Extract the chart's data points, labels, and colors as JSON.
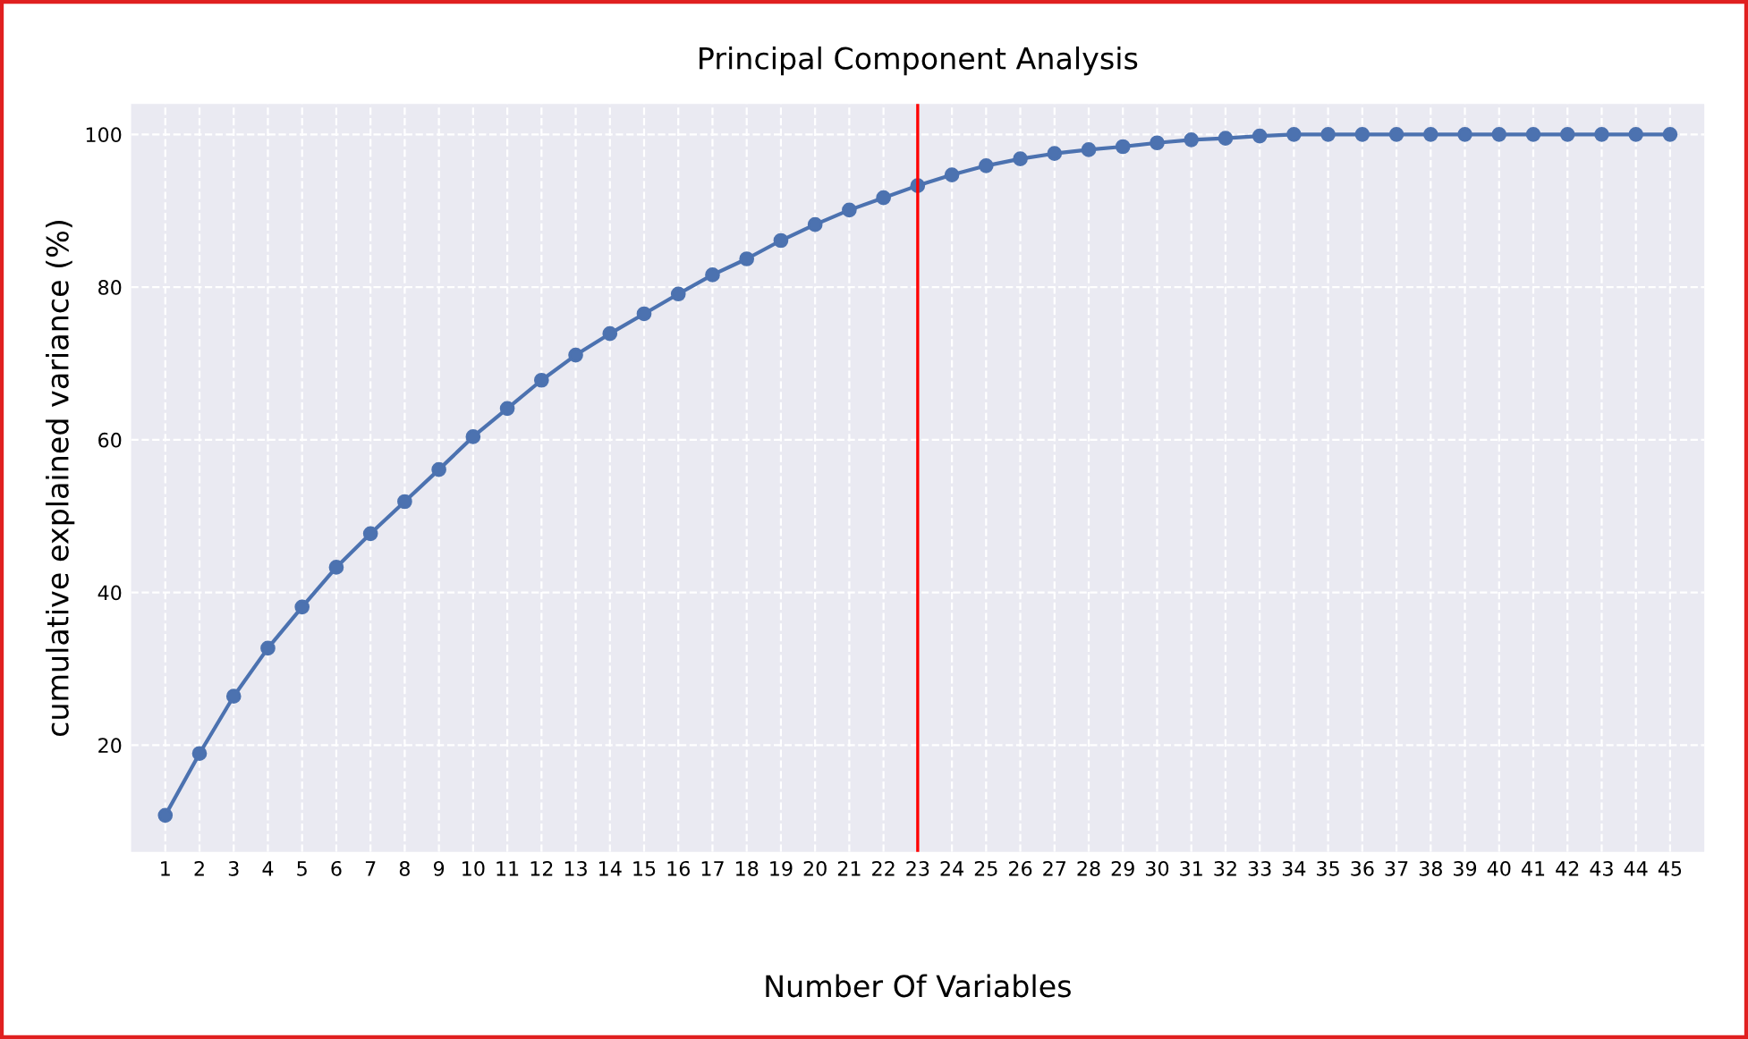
{
  "chart_data": {
    "type": "line",
    "title": "Principal Component Analysis",
    "xlabel": "Number Of Variables",
    "ylabel": "cumulative explained variance (%)",
    "categories": [
      "1",
      "2",
      "3",
      "4",
      "5",
      "6",
      "7",
      "8",
      "9",
      "10",
      "11",
      "12",
      "13",
      "14",
      "15",
      "16",
      "17",
      "18",
      "19",
      "20",
      "21",
      "22",
      "23",
      "24",
      "25",
      "26",
      "27",
      "28",
      "29",
      "30",
      "31",
      "32",
      "33",
      "34",
      "35",
      "36",
      "37",
      "38",
      "39",
      "40",
      "41",
      "42",
      "43",
      "44",
      "45"
    ],
    "series": [
      {
        "color": "#4c72b0",
        "values": [
          10.8,
          18.9,
          26.4,
          32.7,
          38.1,
          43.3,
          47.7,
          51.9,
          56.1,
          60.4,
          64.1,
          67.8,
          71.1,
          73.9,
          76.5,
          79.1,
          81.6,
          83.7,
          86.1,
          88.2,
          90.1,
          91.7,
          93.3,
          94.7,
          95.9,
          96.8,
          97.5,
          98.0,
          98.4,
          98.9,
          99.3,
          99.5,
          99.8,
          100,
          100,
          100,
          100,
          100,
          100,
          100,
          100,
          100,
          100,
          100,
          100
        ]
      }
    ],
    "ylim": [
      6,
      104
    ],
    "yticks": [
      20,
      40,
      60,
      80,
      100
    ],
    "grid": true,
    "marker": "circle",
    "line_style": "solid",
    "ref_lines": [
      {
        "axis": "x",
        "value": "23",
        "color": "#ff0000"
      }
    ]
  }
}
